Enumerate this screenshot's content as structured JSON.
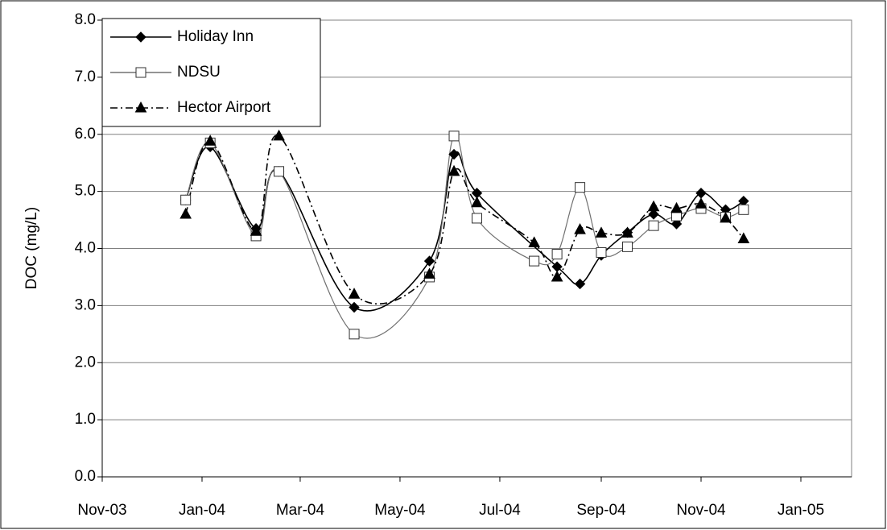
{
  "chart_data": {
    "type": "line",
    "y_label": "DOC (mg/L)",
    "xlim": [
      "2003-11-01",
      "2005-02-01"
    ],
    "xticks": [
      {
        "value": "2003-11-01",
        "label": "Nov-03"
      },
      {
        "value": "2004-01-01",
        "label": "Jan-04"
      },
      {
        "value": "2004-03-01",
        "label": "Mar-04"
      },
      {
        "value": "2004-05-01",
        "label": "May-04"
      },
      {
        "value": "2004-07-01",
        "label": "Jul-04"
      },
      {
        "value": "2004-09-01",
        "label": "Sep-04"
      },
      {
        "value": "2004-11-01",
        "label": "Nov-04"
      },
      {
        "value": "2005-01-01",
        "label": "Jan-05"
      }
    ],
    "ylim": [
      0,
      8
    ],
    "yticks": [
      {
        "value": 0,
        "label": "0.0"
      },
      {
        "value": 1,
        "label": "1.0"
      },
      {
        "value": 2,
        "label": "2.0"
      },
      {
        "value": 3,
        "label": "3.0"
      },
      {
        "value": 4,
        "label": "4.0"
      },
      {
        "value": 5,
        "label": "5.0"
      },
      {
        "value": 6,
        "label": "6.0"
      },
      {
        "value": 7,
        "label": "7.0"
      },
      {
        "value": 8,
        "label": "8.0"
      }
    ],
    "grid": true,
    "legend": "upper left",
    "series": [
      {
        "name": "Holiday Inn",
        "color": "#000000",
        "marker": "diamond",
        "line_style": "solid",
        "x": [
          "2003-12-22",
          "2004-01-06",
          "2004-02-03",
          "2004-02-17",
          "2004-04-03",
          "2004-05-19",
          "2004-06-03",
          "2004-06-17",
          "2004-08-05",
          "2004-08-19",
          "2004-09-01",
          "2004-09-17",
          "2004-10-03",
          "2004-10-17",
          "2004-11-01",
          "2004-11-16",
          "2004-11-27"
        ],
        "values": [
          4.85,
          5.78,
          4.35,
          5.35,
          2.97,
          3.78,
          5.65,
          4.97,
          3.68,
          3.38,
          3.88,
          4.28,
          4.6,
          4.43,
          4.97,
          4.68,
          4.83
        ]
      },
      {
        "name": "NDSU",
        "color": "#707070",
        "marker": "square",
        "line_style": "solid",
        "x": [
          "2003-12-22",
          "2004-01-06",
          "2004-02-03",
          "2004-02-17",
          "2004-04-03",
          "2004-05-19",
          "2004-06-03",
          "2004-06-17",
          "2004-07-22",
          "2004-08-05",
          "2004-08-19",
          "2004-09-01",
          "2004-09-17",
          "2004-10-03",
          "2004-10-17",
          "2004-11-01",
          "2004-11-16",
          "2004-11-27"
        ],
        "values": [
          4.85,
          5.85,
          4.22,
          5.35,
          2.5,
          3.5,
          5.97,
          4.53,
          3.78,
          3.9,
          5.07,
          3.93,
          4.03,
          4.4,
          4.57,
          4.7,
          4.55,
          4.68
        ]
      },
      {
        "name": "Hector Airport",
        "color": "#000000",
        "marker": "triangle",
        "line_style": "dashdot",
        "x": [
          "2003-12-22",
          "2004-01-06",
          "2004-02-03",
          "2004-02-17",
          "2004-04-03",
          "2004-05-19",
          "2004-06-03",
          "2004-06-17",
          "2004-07-22",
          "2004-08-05",
          "2004-08-19",
          "2004-09-01",
          "2004-09-17",
          "2004-10-03",
          "2004-10-17",
          "2004-11-01",
          "2004-11-16",
          "2004-11-27"
        ],
        "values": [
          4.6,
          5.88,
          4.3,
          5.97,
          3.2,
          3.55,
          5.35,
          4.8,
          4.1,
          3.5,
          4.33,
          4.27,
          4.27,
          4.73,
          4.7,
          4.78,
          4.53,
          4.17
        ]
      }
    ]
  }
}
